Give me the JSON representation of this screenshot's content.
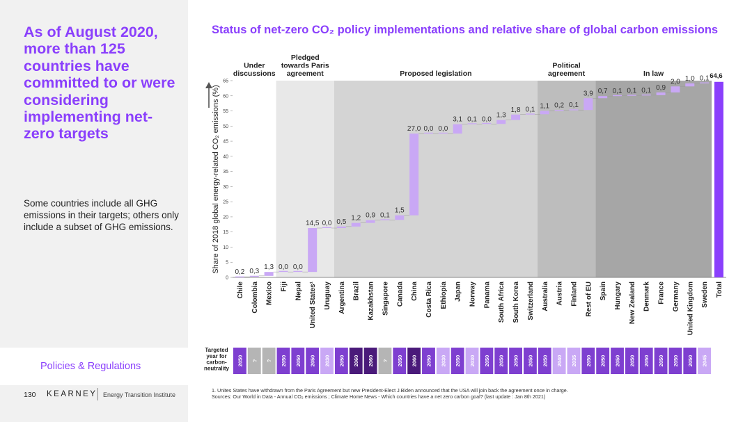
{
  "sidebar": {
    "headline": "As of August 2020, more than 125 countries have committed to or were considering implementing net-zero targets",
    "note": "Some countries include all GHG emissions in their targets; others only include a subset of GHG emissions.",
    "section_label": "Policies & Regulations"
  },
  "footer": {
    "page_number": "130",
    "brand": "KEARNEY",
    "brand_sub": "Energy Transition Institute",
    "footnote1": "1. Unites States have withdrawn from the Paris Agreement but new President-Elect J.Biden announced that the USA will join back the agreement once in charge.",
    "footnote2": "Sources: Our World in Data -  Annual CO₂ emissions ; Climate Home News - Which countries have a net zero carbon goal? (last update : Jan 8th 2021)"
  },
  "chart_title": "Status of net-zero CO₂ policy implementations and relative share of global carbon emissions",
  "chart_data": {
    "type": "bar",
    "subtype": "waterfall",
    "title": "Status of net-zero CO₂ policy implementations and relative share of global carbon emissions",
    "ylabel": "Share of 2018 global energy-related CO₂ emissions (%)",
    "ylim": [
      0,
      65
    ],
    "yticks": [
      0,
      5,
      10,
      15,
      20,
      25,
      30,
      35,
      40,
      45,
      50,
      55,
      60,
      65
    ],
    "total_label": "64,6",
    "total_value": 64.6,
    "target_row_label": "Targeted year for carbon-neutrality",
    "groups": [
      {
        "label": "Under discussions",
        "from": 0,
        "to": 2,
        "shade": "#ffffff"
      },
      {
        "label": "Pledged towards Paris agreement",
        "from": 3,
        "to": 6,
        "shade": "#e8e8e8"
      },
      {
        "label": "Proposed legislation",
        "from": 7,
        "to": 20,
        "shade": "#d4d4d4"
      },
      {
        "label": "Political agreement",
        "from": 21,
        "to": 24,
        "shade": "#bdbdbd"
      },
      {
        "label": "In law",
        "from": 25,
        "to": 32,
        "shade": "#a6a6a6"
      }
    ],
    "categories": [
      "Chile",
      "Colombia",
      "Mexico",
      "Fiji",
      "Nepal",
      "United States¹",
      "Uruguay",
      "Argentina",
      "Brazil",
      "Kazakhstan",
      "Singapore",
      "Canada",
      "China",
      "Costa Rica",
      "Ethiopia",
      "Japan",
      "Norway",
      "Panama",
      "South Africa",
      "South Korea",
      "Switzerland",
      "Australia",
      "Austria",
      "Finland",
      "Rest of EU",
      "Spain",
      "Hungary",
      "New Zealand",
      "Denmark",
      "France",
      "Germany",
      "United Kingdom",
      "Sweden",
      "Total"
    ],
    "values": [
      0.2,
      0.3,
      1.3,
      0.0,
      0.0,
      14.5,
      0.0,
      0.5,
      1.2,
      0.9,
      0.1,
      1.5,
      27.0,
      0.0,
      0.0,
      3.1,
      0.1,
      0.0,
      1.3,
      1.8,
      0.1,
      1.1,
      0.2,
      0.1,
      3.9,
      0.7,
      0.1,
      0.1,
      0.1,
      0.9,
      2.0,
      1.0,
      0.1,
      64.6
    ],
    "value_labels": [
      "0,2",
      "0,3",
      "1,3",
      "0,0",
      "0,0",
      "14,5",
      "0,0",
      "0,5",
      "1,2",
      "0,9",
      "0,1",
      "1,5",
      "27,0",
      "0,0",
      "0,0",
      "3,1",
      "0,1",
      "0,0",
      "1,3",
      "1,8",
      "0,1",
      "1,1",
      "0,2",
      "0,1",
      "3,9",
      "0,7",
      "0,1",
      "0,1",
      "0,1",
      "0,9",
      "2,0",
      "1,0",
      "0,1",
      "64,6"
    ],
    "target_years": [
      "2050",
      "?",
      "?",
      "2050",
      "2050",
      "2050",
      "2030",
      "2050",
      "2060",
      "2060",
      "?",
      "2050",
      "2060",
      "2050",
      "2030",
      "2050",
      "2030",
      "2050",
      "2050",
      "2050",
      "2050",
      "2050",
      "2040",
      "2035",
      "2050",
      "2050",
      "2050",
      "2050",
      "2050",
      "2050",
      "2050",
      "2050",
      "2045"
    ],
    "colors": {
      "waterfall_bar": "#c9a8f5",
      "total_bar": "#8a3ffc",
      "year_2050": "#7e3fd0",
      "year_2060": "#4a1a7a",
      "year_earlier": "#c9a8f5",
      "year_unknown": "#b5b5b5",
      "accent": "#8a3ffc"
    }
  }
}
